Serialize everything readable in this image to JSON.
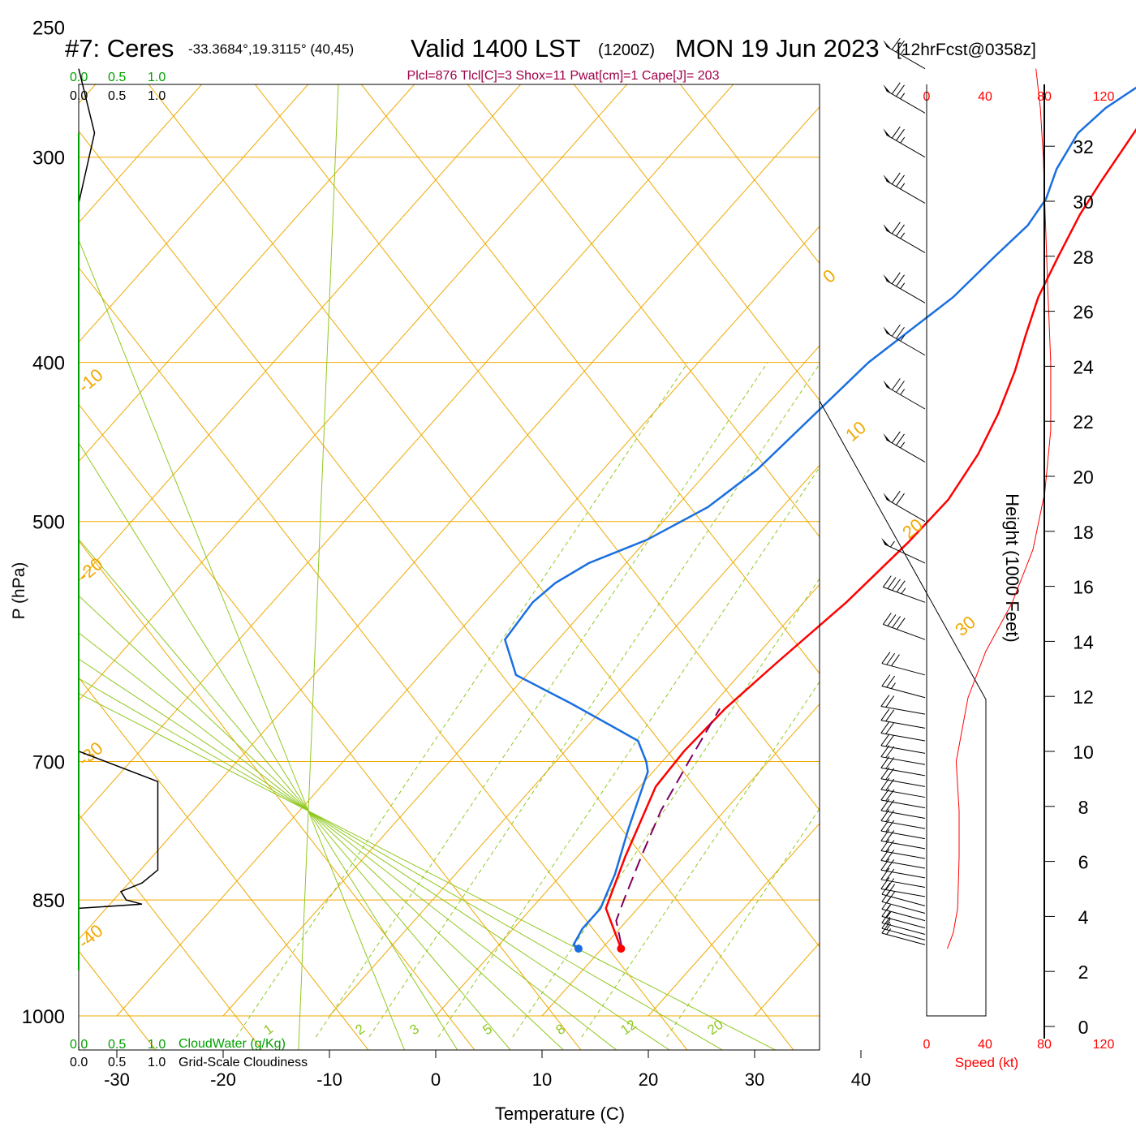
{
  "header": {
    "station": "#7: Ceres",
    "coords": "-33.3684°,19.3115° (40,45)",
    "valid": "Valid 1400 LST",
    "zulu": "(1200Z)",
    "date": "MON 19 Jun 2023",
    "forecast": "[12hrFcst@0358z]",
    "indices": "Plcl=876 Tlcl[C]=3 Shox=11 Pwat[cm]=1 Cape[J]= 203"
  },
  "colors": {
    "temperature": "#ff0000",
    "dewpoint": "#1a6fe0",
    "parcel": "#800060",
    "isotherm": "#f0a800",
    "mixing_ratio": "#90c820",
    "cloud_water": "#00a000",
    "speed_axis": "#ff0000",
    "indices": "#a0004a"
  },
  "cloud_scales": {
    "top_green": [
      "0.0",
      "0.5",
      "1.0"
    ],
    "top_black": [
      "0.0",
      "0.5",
      "1.0"
    ],
    "bottom_green": [
      "0.0",
      "0.5",
      "1.0"
    ],
    "bottom_black": [
      "0.0",
      "0.5",
      "1.0"
    ],
    "cloud_water_label": "CloudWater (g/Kg)",
    "cloudiness_label": "Grid-Scale Cloudiness"
  },
  "speed_scale": {
    "ticks": [
      "0",
      "40",
      "80",
      "120"
    ],
    "label": "Speed (kt)"
  },
  "chart_data": {
    "type": "line",
    "xlabel": "Temperature (C)",
    "ylabel": "P (hPa)",
    "y2label": "Height (1000 Feet)",
    "x_ticks": [
      "-30",
      "-20",
      "-10",
      "0",
      "10",
      "20",
      "30",
      "40"
    ],
    "p_ticks": [
      "250",
      "300",
      "400",
      "500",
      "700",
      "850",
      "1000"
    ],
    "height_ticks": [
      "0",
      "2",
      "4",
      "6",
      "8",
      "10",
      "12",
      "14",
      "16",
      "18",
      "20",
      "22",
      "24",
      "26",
      "28",
      "30",
      "32"
    ],
    "xlim": [
      -34,
      36
    ],
    "plim": [
      250,
      1000
    ],
    "isotherm_labels": [
      "0",
      "10",
      "20",
      "30",
      "-10",
      "-20",
      "-30",
      "-40"
    ],
    "mixing_ratio_labels": [
      "1",
      "2",
      "3",
      "5",
      "8",
      "12",
      "20"
    ],
    "series": [
      {
        "name": "Temperature",
        "points": [
          [
            11.8,
            910
          ],
          [
            7,
            860
          ],
          [
            4.5,
            800
          ],
          [
            1.5,
            725
          ],
          [
            1.2,
            690
          ],
          [
            1.5,
            650
          ],
          [
            2.5,
            610
          ],
          [
            4,
            560
          ],
          [
            4.8,
            515
          ],
          [
            5,
            485
          ],
          [
            4,
            455
          ],
          [
            2.5,
            430
          ],
          [
            0.5,
            405
          ],
          [
            -1.5,
            385
          ],
          [
            -3.5,
            365
          ],
          [
            -5,
            345
          ],
          [
            -6.5,
            325
          ],
          [
            -7.3,
            310
          ],
          [
            -8,
            295
          ],
          [
            -9,
            275
          ],
          [
            -9.5,
            270
          ]
        ]
      },
      {
        "name": "Dewpoint",
        "points": [
          [
            7.8,
            910
          ],
          [
            7,
            905
          ],
          [
            6.5,
            885
          ],
          [
            6.5,
            860
          ],
          [
            5,
            820
          ],
          [
            2.5,
            770
          ],
          [
            -0.5,
            710
          ],
          [
            -1.5,
            700
          ],
          [
            -4,
            680
          ],
          [
            -8,
            665
          ],
          [
            -13.5,
            645
          ],
          [
            -21,
            620
          ],
          [
            -25,
            590
          ],
          [
            -25.5,
            560
          ],
          [
            -25,
            545
          ],
          [
            -23.5,
            530
          ],
          [
            -20,
            513
          ],
          [
            -17,
            490
          ],
          [
            -15.5,
            465
          ],
          [
            -14,
            400
          ],
          [
            -11.5,
            365
          ],
          [
            -11,
            345
          ],
          [
            -10.5,
            330
          ],
          [
            -11,
            318
          ],
          [
            -12.5,
            305
          ],
          [
            -13.5,
            290
          ],
          [
            -13,
            280
          ],
          [
            -11.5,
            270
          ],
          [
            -9.5,
            265
          ]
        ]
      },
      {
        "name": "Parcel",
        "points": [
          [
            11.5,
            905
          ],
          [
            9,
            875
          ],
          [
            8,
            850
          ],
          [
            6,
            800
          ],
          [
            4,
            750
          ],
          [
            2.5,
            700
          ],
          [
            1,
            650
          ]
        ]
      }
    ],
    "cloudiness_profile": [
      [
        0.0,
        265
      ],
      [
        0.15,
        290
      ],
      [
        0.0,
        320
      ],
      [
        0.0,
        690
      ],
      [
        0.75,
        720
      ],
      [
        0.75,
        815
      ],
      [
        0.6,
        830
      ],
      [
        0.4,
        840
      ],
      [
        0.45,
        850
      ],
      [
        0.6,
        855
      ],
      [
        0.0,
        860
      ]
    ],
    "wind_speed_profile_kt": [
      [
        14,
        910
      ],
      [
        18,
        890
      ],
      [
        21,
        860
      ],
      [
        22,
        800
      ],
      [
        22,
        750
      ],
      [
        20,
        700
      ],
      [
        28,
        640
      ],
      [
        40,
        600
      ],
      [
        58,
        560
      ],
      [
        72,
        520
      ],
      [
        80,
        480
      ],
      [
        84,
        440
      ],
      [
        84,
        400
      ],
      [
        82,
        360
      ],
      [
        80,
        320
      ],
      [
        79,
        300
      ],
      [
        77,
        280
      ],
      [
        74,
        265
      ]
    ],
    "wind_barbs": [
      {
        "p": 265,
        "dir": 300,
        "kt": 75
      },
      {
        "p": 282,
        "dir": 300,
        "kt": 75
      },
      {
        "p": 300,
        "dir": 300,
        "kt": 75
      },
      {
        "p": 320,
        "dir": 300,
        "kt": 75
      },
      {
        "p": 343,
        "dir": 300,
        "kt": 75
      },
      {
        "p": 368,
        "dir": 300,
        "kt": 75
      },
      {
        "p": 396,
        "dir": 300,
        "kt": 75
      },
      {
        "p": 427,
        "dir": 300,
        "kt": 75
      },
      {
        "p": 460,
        "dir": 300,
        "kt": 75
      },
      {
        "p": 500,
        "dir": 300,
        "kt": 70
      },
      {
        "p": 530,
        "dir": 295,
        "kt": 55
      },
      {
        "p": 560,
        "dir": 290,
        "kt": 45
      },
      {
        "p": 590,
        "dir": 290,
        "kt": 40
      },
      {
        "p": 620,
        "dir": 285,
        "kt": 30
      },
      {
        "p": 640,
        "dir": 285,
        "kt": 25
      },
      {
        "p": 655,
        "dir": 280,
        "kt": 20
      },
      {
        "p": 668,
        "dir": 280,
        "kt": 20
      },
      {
        "p": 680,
        "dir": 280,
        "kt": 20
      },
      {
        "p": 692,
        "dir": 280,
        "kt": 20
      },
      {
        "p": 703,
        "dir": 280,
        "kt": 20
      },
      {
        "p": 714,
        "dir": 280,
        "kt": 20
      },
      {
        "p": 725,
        "dir": 280,
        "kt": 20
      },
      {
        "p": 736,
        "dir": 280,
        "kt": 20
      },
      {
        "p": 747,
        "dir": 280,
        "kt": 20
      },
      {
        "p": 758,
        "dir": 280,
        "kt": 20
      },
      {
        "p": 769,
        "dir": 280,
        "kt": 20
      },
      {
        "p": 780,
        "dir": 280,
        "kt": 20
      },
      {
        "p": 791,
        "dir": 280,
        "kt": 20
      },
      {
        "p": 802,
        "dir": 280,
        "kt": 20
      },
      {
        "p": 813,
        "dir": 280,
        "kt": 20
      },
      {
        "p": 824,
        "dir": 280,
        "kt": 20
      },
      {
        "p": 835,
        "dir": 280,
        "kt": 20
      },
      {
        "p": 846,
        "dir": 280,
        "kt": 20
      },
      {
        "p": 857,
        "dir": 285,
        "kt": 20
      },
      {
        "p": 866,
        "dir": 285,
        "kt": 20
      },
      {
        "p": 875,
        "dir": 285,
        "kt": 15
      },
      {
        "p": 884,
        "dir": 285,
        "kt": 15
      },
      {
        "p": 892,
        "dir": 285,
        "kt": 15
      },
      {
        "p": 899,
        "dir": 285,
        "kt": 15
      },
      {
        "p": 905,
        "dir": 285,
        "kt": 15
      }
    ]
  }
}
